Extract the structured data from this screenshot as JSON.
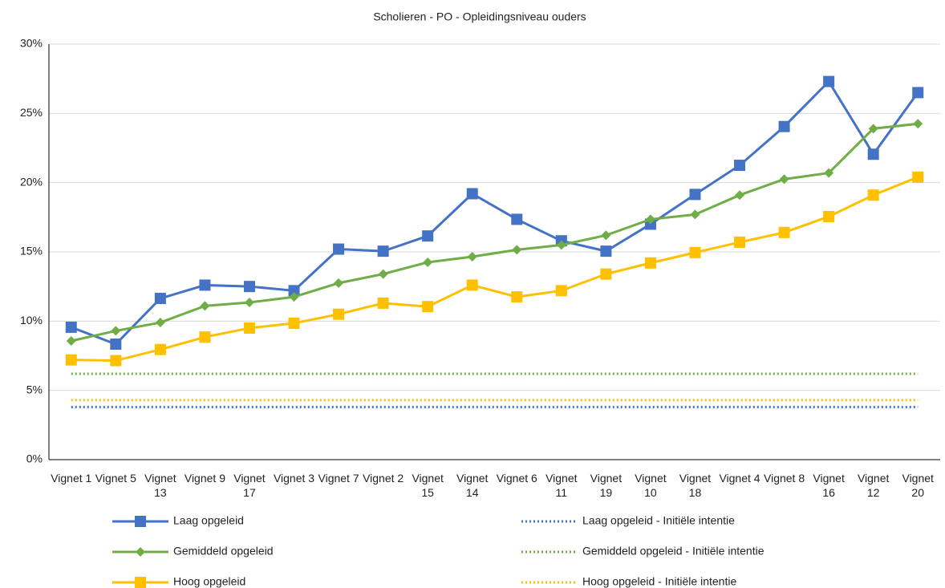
{
  "chart_data": {
    "type": "line",
    "title": "Scholieren - PO - Opleidingsniveau ouders",
    "categories": [
      "Vignet 1",
      "Vignet 5",
      "Vignet 13",
      "Vignet 9",
      "Vignet 17",
      "Vignet 3",
      "Vignet 7",
      "Vignet 2",
      "Vignet 15",
      "Vignet 14",
      "Vignet 6",
      "Vignet 11",
      "Vignet 19",
      "Vignet 10",
      "Vignet 18",
      "Vignet 4",
      "Vignet 8",
      "Vignet 16",
      "Vignet 12",
      "Vignet 20"
    ],
    "series": [
      {
        "name": "Laag opgeleid",
        "color": "#4472c4",
        "marker": "square",
        "values": [
          9.56,
          8.34,
          11.64,
          12.6,
          12.5,
          12.2,
          15.2,
          15.05,
          16.15,
          19.2,
          17.35,
          15.8,
          15.05,
          17.0,
          19.15,
          21.25,
          24.05,
          27.3,
          22.05,
          26.5
        ]
      },
      {
        "name": "Gemiddeld opgeleid",
        "color": "#70ad47",
        "marker": "diamond",
        "values": [
          8.57,
          9.3,
          9.9,
          11.1,
          11.35,
          11.75,
          12.75,
          13.4,
          14.25,
          14.65,
          15.15,
          15.5,
          16.2,
          17.35,
          17.7,
          19.1,
          20.25,
          20.7,
          23.9,
          24.25
        ]
      },
      {
        "name": "Hoog opgeleid",
        "color": "#ffc000",
        "marker": "square",
        "values": [
          7.2,
          7.15,
          7.95,
          8.85,
          9.5,
          9.85,
          10.5,
          11.3,
          11.05,
          12.6,
          11.75,
          12.2,
          13.4,
          14.2,
          14.95,
          15.7,
          16.4,
          17.55,
          19.1,
          20.4
        ]
      },
      {
        "name": "Laag opgeleid - Initiële intentie",
        "color": "#4472c4",
        "dash": "dotted",
        "values": [
          3.8,
          3.8,
          3.8,
          3.8,
          3.8,
          3.8,
          3.8,
          3.8,
          3.8,
          3.8,
          3.8,
          3.8,
          3.8,
          3.8,
          3.8,
          3.8,
          3.8,
          3.8,
          3.8,
          3.8
        ]
      },
      {
        "name": "Gemiddeld opgeleid - Initiële intentie",
        "color": "#70ad47",
        "dash": "dotted",
        "values": [
          6.2,
          6.2,
          6.2,
          6.2,
          6.2,
          6.2,
          6.2,
          6.2,
          6.2,
          6.2,
          6.2,
          6.2,
          6.2,
          6.2,
          6.2,
          6.2,
          6.2,
          6.2,
          6.2,
          6.2
        ]
      },
      {
        "name": "Hoog opgeleid - Initiële intentie",
        "color": "#ffc000",
        "dash": "dotted",
        "values": [
          4.3,
          4.3,
          4.3,
          4.3,
          4.3,
          4.3,
          4.3,
          4.3,
          4.3,
          4.3,
          4.3,
          4.3,
          4.3,
          4.3,
          4.3,
          4.3,
          4.3,
          4.3,
          4.3,
          4.3
        ]
      }
    ],
    "ylim": [
      0,
      30
    ],
    "yticks": [
      {
        "value": 0,
        "label": "0%"
      },
      {
        "value": 5,
        "label": "5%"
      },
      {
        "value": 10,
        "label": "10%"
      },
      {
        "value": 15,
        "label": "15%"
      },
      {
        "value": 20,
        "label": "20%"
      },
      {
        "value": 25,
        "label": "25%"
      },
      {
        "value": 30,
        "label": "30%"
      }
    ],
    "grid": true,
    "legend": "bottom"
  }
}
